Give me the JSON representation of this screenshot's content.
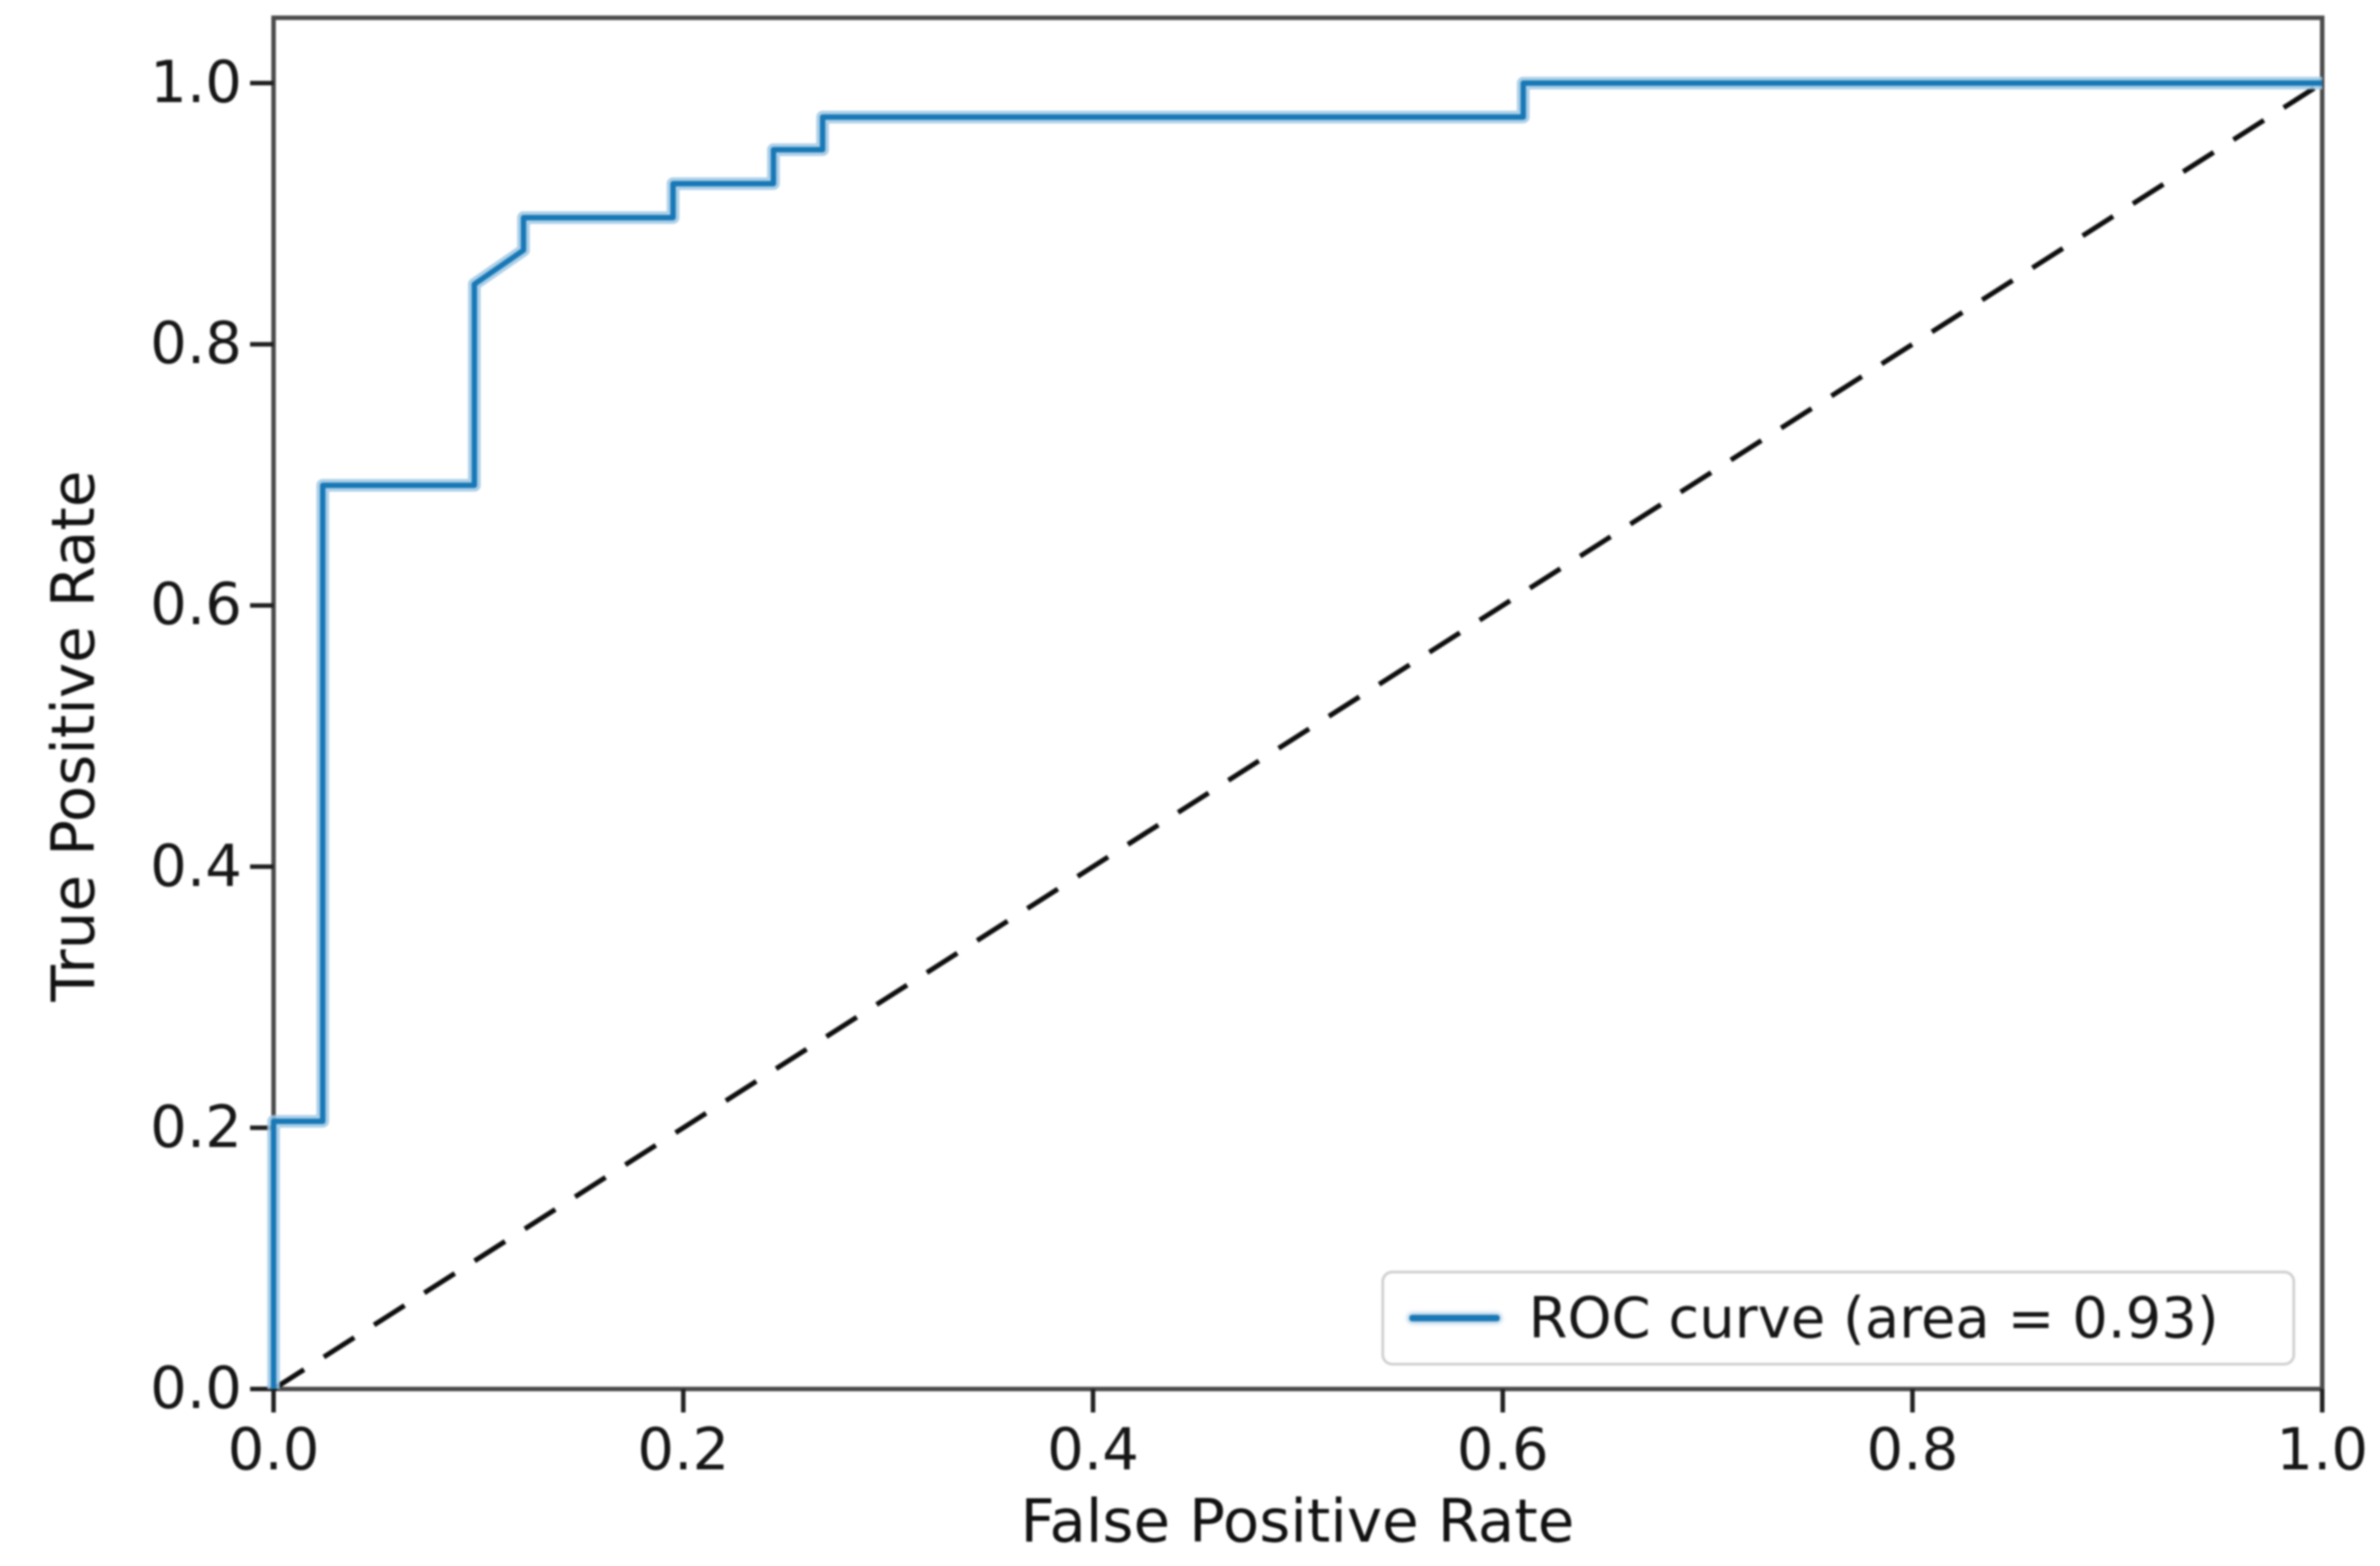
{
  "chart_data": {
    "type": "line",
    "title": "",
    "xlabel": "False Positive Rate",
    "ylabel": "True Positive Rate",
    "xlim": [
      0.0,
      1.0
    ],
    "ylim": [
      0.0,
      1.05
    ],
    "x_ticks": [
      "0.0",
      "0.2",
      "0.4",
      "0.6",
      "0.8",
      "1.0"
    ],
    "y_ticks": [
      "0.0",
      "0.2",
      "0.4",
      "0.6",
      "0.8",
      "1.0"
    ],
    "x_tick_values": [
      0.0,
      0.2,
      0.4,
      0.6,
      0.8,
      1.0
    ],
    "y_tick_values": [
      0.0,
      0.2,
      0.4,
      0.6,
      0.8,
      1.0
    ],
    "grid": false,
    "legend_position": "lower right",
    "auc": 0.93,
    "series": [
      {
        "name": "ROC curve (area = 0.93)",
        "style": "solid",
        "color": "#1f77b4",
        "points": [
          [
            0.0,
            0.0
          ],
          [
            0.0,
            0.205
          ],
          [
            0.024,
            0.205
          ],
          [
            0.024,
            0.692
          ],
          [
            0.098,
            0.692
          ],
          [
            0.098,
            0.846
          ],
          [
            0.122,
            0.872
          ],
          [
            0.122,
            0.897
          ],
          [
            0.195,
            0.897
          ],
          [
            0.195,
            0.923
          ],
          [
            0.244,
            0.923
          ],
          [
            0.244,
            0.949
          ],
          [
            0.268,
            0.949
          ],
          [
            0.268,
            0.974
          ],
          [
            0.61,
            0.974
          ],
          [
            0.61,
            1.0
          ],
          [
            1.0,
            1.0
          ]
        ]
      },
      {
        "name": "chance-diagonal",
        "style": "dashed",
        "color": "#0d0d0d",
        "points": [
          [
            0.0,
            0.0
          ],
          [
            1.0,
            1.0
          ]
        ]
      }
    ]
  },
  "legend": {
    "label": "ROC curve (area = 0.93)"
  },
  "colors": {
    "roc_line": "#1f77b4",
    "roc_halo": "#9fc8e4",
    "diagonal": "#0d0d0d",
    "spine": "#4b4b4b",
    "tick": "#1f1f1f",
    "background": "#ffffff",
    "legend_border": "#cfcfcf"
  }
}
